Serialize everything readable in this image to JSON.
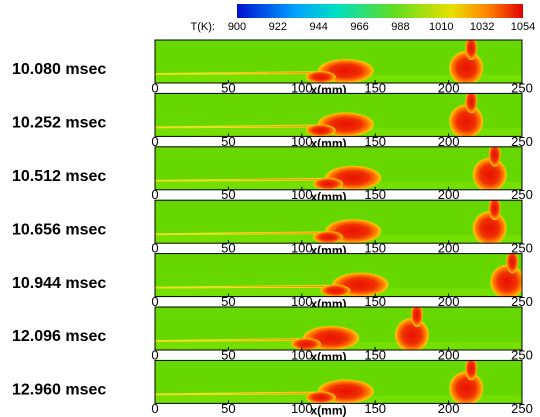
{
  "colorbar": {
    "label": "T(K):",
    "range": [
      900,
      1054
    ],
    "ticks": [
      900,
      922,
      944,
      966,
      988,
      1010,
      1032,
      1054
    ]
  },
  "x_axis": {
    "label": "x(mm)",
    "range": [
      0,
      250
    ],
    "ticks": [
      0,
      50,
      100,
      150,
      200,
      250
    ]
  },
  "panels": [
    {
      "label": "10.080 msec"
    },
    {
      "label": "10.252 msec"
    },
    {
      "label": "10.512 msec"
    },
    {
      "label": "10.656 msec"
    },
    {
      "label": "10.944 msec"
    },
    {
      "label": "12.096 msec"
    },
    {
      "label": "12.960 msec"
    }
  ]
}
